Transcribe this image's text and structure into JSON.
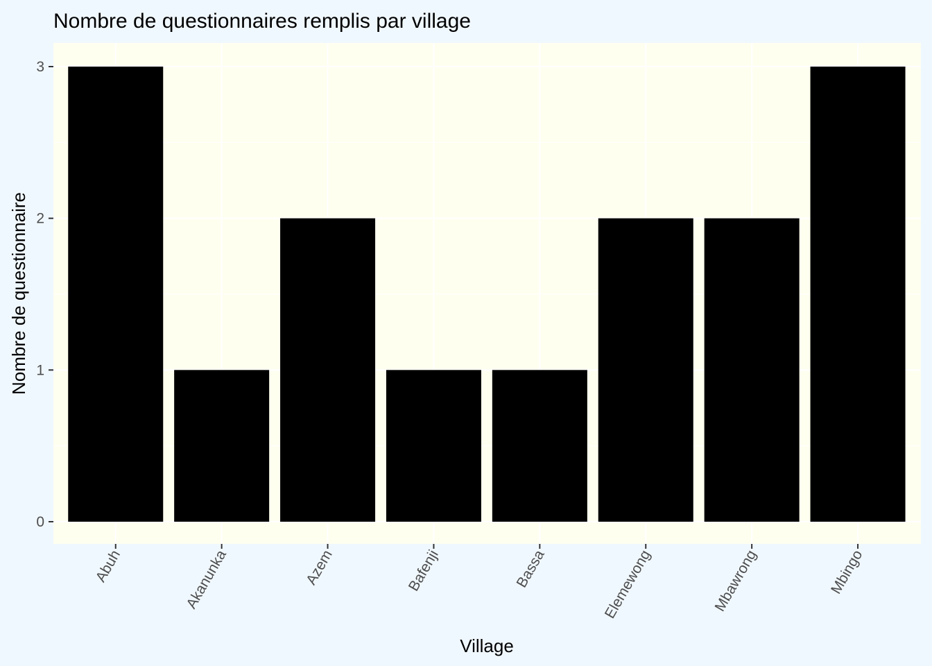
{
  "colors": {
    "page_background": "#f0f8ff",
    "panel_background": "#fffff0",
    "grid": "#ffffff",
    "bar_fill": "#000000",
    "text_title": "#000000",
    "text_ticks": "#4d4d4d",
    "tick_marks": "#333333"
  },
  "chart_data": {
    "type": "bar",
    "title": "Nombre de questionnaires remplis par village",
    "xlabel": "Village",
    "ylabel": "Nombre de questionnaire",
    "categories": [
      "Abuh",
      "Akanunka",
      "Azem",
      "Bafenji",
      "Bassa",
      "Elemewong",
      "Mbawrong",
      "Mbingo"
    ],
    "values": [
      3,
      1,
      2,
      1,
      1,
      2,
      2,
      3
    ],
    "ylim": [
      0,
      3
    ],
    "yticks": [
      "0",
      "1",
      "2",
      "3"
    ],
    "grid": true,
    "legend": "none"
  }
}
